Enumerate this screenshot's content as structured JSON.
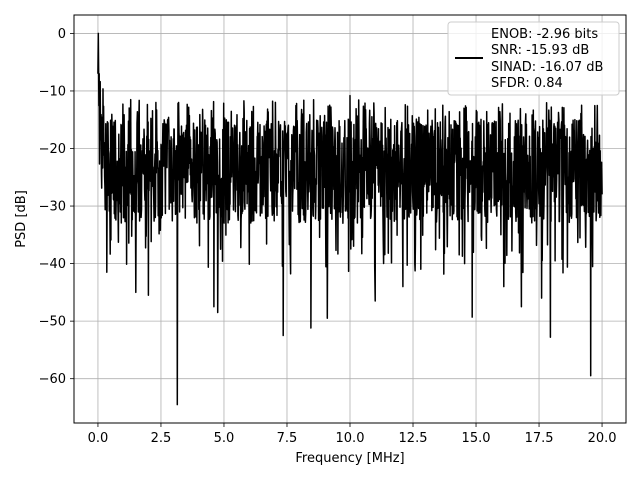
{
  "chart_data": {
    "type": "line",
    "xlabel": "Frequency [MHz]",
    "ylabel": "PSD [dB]",
    "xlim": [
      -0.95,
      20.95
    ],
    "ylim": [
      -67.7,
      3.2
    ],
    "xticks": [
      0.0,
      2.5,
      5.0,
      7.5,
      10.0,
      12.5,
      15.0,
      17.5,
      20.0
    ],
    "xtick_labels": [
      "0.0",
      "2.5",
      "5.0",
      "7.5",
      "10.0",
      "12.5",
      "15.0",
      "17.5",
      "20.0"
    ],
    "yticks": [
      0,
      -10,
      -20,
      -30,
      -40,
      -50,
      -60
    ],
    "ytick_labels": [
      "0",
      "−10",
      "−20",
      "−30",
      "−40",
      "−50",
      "−60"
    ],
    "grid": true,
    "legend_position": "top-right",
    "series": [
      {
        "name": "ENOB: -2.96 bits",
        "color": "#000000",
        "x_range": [
          0.0,
          20.0
        ],
        "band_upper_db": -14,
        "band_lower_db": -32,
        "peaks": [
          {
            "x": 0.0,
            "y": 0.0
          },
          {
            "x": 0.05,
            "y": -7
          },
          {
            "x": 10.0,
            "y": -10.8
          },
          {
            "x": 3.2,
            "y": -12
          },
          {
            "x": 1.3,
            "y": -11.5
          },
          {
            "x": 2.3,
            "y": -12
          }
        ],
        "dips": [
          {
            "x": 3.15,
            "y": -64.5
          },
          {
            "x": 19.55,
            "y": -59.5
          },
          {
            "x": 7.35,
            "y": -52.5
          },
          {
            "x": 8.45,
            "y": -51.2
          },
          {
            "x": 9.1,
            "y": -49.5
          },
          {
            "x": 17.95,
            "y": -52.8
          },
          {
            "x": 14.85,
            "y": -49.3
          },
          {
            "x": 4.6,
            "y": -47.5
          },
          {
            "x": 4.75,
            "y": -48.5
          },
          {
            "x": 0.35,
            "y": -41.5
          },
          {
            "x": 1.5,
            "y": -45
          },
          {
            "x": 2.0,
            "y": -45.5
          },
          {
            "x": 11.0,
            "y": -46.5
          },
          {
            "x": 16.8,
            "y": -47.5
          },
          {
            "x": 17.6,
            "y": -46
          },
          {
            "x": 12.1,
            "y": -44
          },
          {
            "x": 16.1,
            "y": -44
          }
        ]
      }
    ]
  },
  "legend": {
    "lines": [
      "ENOB: -2.96 bits",
      "SNR: -15.93 dB",
      "SINAD: -16.07 dB",
      "SFDR: 0.84"
    ]
  }
}
